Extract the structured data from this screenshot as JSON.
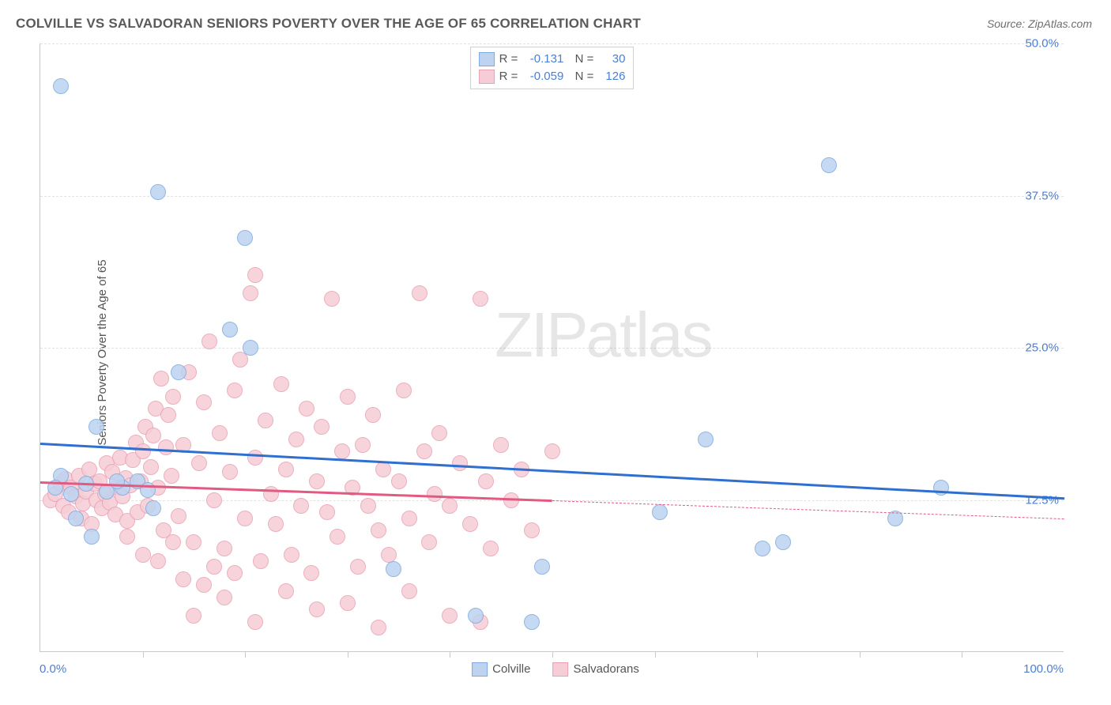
{
  "title": "COLVILLE VS SALVADORAN SENIORS POVERTY OVER THE AGE OF 65 CORRELATION CHART",
  "source": "Source: ZipAtlas.com",
  "ylabel": "Seniors Poverty Over the Age of 65",
  "watermark_a": "ZIP",
  "watermark_b": "atlas",
  "chart": {
    "type": "scatter",
    "xlim": [
      0,
      100
    ],
    "ylim": [
      0,
      50
    ],
    "xlim_labels": [
      "0.0%",
      "100.0%"
    ],
    "yticks": [
      12.5,
      25.0,
      37.5,
      50.0
    ],
    "ytick_labels": [
      "12.5%",
      "25.0%",
      "37.5%",
      "50.0%"
    ],
    "xtick_positions": [
      10,
      20,
      30,
      40,
      50,
      60,
      70,
      80,
      90
    ],
    "grid_color": "#e2e2e2",
    "axis_color": "#c9c9c9",
    "background_color": "#ffffff",
    "point_radius": 10,
    "series": [
      {
        "name": "Colville",
        "color_fill": "#bdd3f0",
        "color_stroke": "#7faae0",
        "R": "-0.131",
        "N": "30",
        "trend": {
          "x1": 0,
          "y1": 17.2,
          "x2": 100,
          "y2": 12.7,
          "color": "#2f6fd0",
          "width": 3,
          "solid_until_x": 100
        },
        "points": [
          [
            2.0,
            46.5
          ],
          [
            11.5,
            37.8
          ],
          [
            20.0,
            34.0
          ],
          [
            18.5,
            26.5
          ],
          [
            20.5,
            25.0
          ],
          [
            13.5,
            23.0
          ],
          [
            5.5,
            18.5
          ],
          [
            8.0,
            13.5
          ],
          [
            7.5,
            14.0
          ],
          [
            2.0,
            14.5
          ],
          [
            1.5,
            13.5
          ],
          [
            3.0,
            13.0
          ],
          [
            4.5,
            13.8
          ],
          [
            6.5,
            13.2
          ],
          [
            9.5,
            14.0
          ],
          [
            10.5,
            13.3
          ],
          [
            3.5,
            11.0
          ],
          [
            5.0,
            9.5
          ],
          [
            11.0,
            11.8
          ],
          [
            34.5,
            6.8
          ],
          [
            49.0,
            7.0
          ],
          [
            48.0,
            2.5
          ],
          [
            65.0,
            17.5
          ],
          [
            77.0,
            40.0
          ],
          [
            70.5,
            8.5
          ],
          [
            72.5,
            9.0
          ],
          [
            60.5,
            11.5
          ],
          [
            83.5,
            11.0
          ],
          [
            88.0,
            13.5
          ],
          [
            42.5,
            3.0
          ]
        ]
      },
      {
        "name": "Salvadorans",
        "color_fill": "#f6cdd6",
        "color_stroke": "#eaa2b3",
        "R": "-0.059",
        "N": "126",
        "trend": {
          "x1": 0,
          "y1": 14.0,
          "x2": 100,
          "y2": 11.0,
          "color": "#e05a82",
          "width": 3,
          "solid_until_x": 50
        },
        "points": [
          [
            1.0,
            12.5
          ],
          [
            1.5,
            13.0
          ],
          [
            2.0,
            13.8
          ],
          [
            2.2,
            12.0
          ],
          [
            2.5,
            14.2
          ],
          [
            2.8,
            11.5
          ],
          [
            3.0,
            13.5
          ],
          [
            3.5,
            12.8
          ],
          [
            3.8,
            14.5
          ],
          [
            4.0,
            11.0
          ],
          [
            4.2,
            12.2
          ],
          [
            4.5,
            13.2
          ],
          [
            4.8,
            15.0
          ],
          [
            5.0,
            10.5
          ],
          [
            5.3,
            13.8
          ],
          [
            5.5,
            12.5
          ],
          [
            5.8,
            14.0
          ],
          [
            6.0,
            11.8
          ],
          [
            6.3,
            13.0
          ],
          [
            6.5,
            15.5
          ],
          [
            6.8,
            12.3
          ],
          [
            7.0,
            14.8
          ],
          [
            7.3,
            11.3
          ],
          [
            7.5,
            13.5
          ],
          [
            7.8,
            16.0
          ],
          [
            8.0,
            12.8
          ],
          [
            8.3,
            14.3
          ],
          [
            8.5,
            10.8
          ],
          [
            8.8,
            13.7
          ],
          [
            9.0,
            15.8
          ],
          [
            9.3,
            17.2
          ],
          [
            9.5,
            11.5
          ],
          [
            9.8,
            14.0
          ],
          [
            10.0,
            16.5
          ],
          [
            10.3,
            18.5
          ],
          [
            10.5,
            12.0
          ],
          [
            10.8,
            15.2
          ],
          [
            11.0,
            17.8
          ],
          [
            11.3,
            20.0
          ],
          [
            11.5,
            13.5
          ],
          [
            11.8,
            22.5
          ],
          [
            12.0,
            10.0
          ],
          [
            12.3,
            16.8
          ],
          [
            12.5,
            19.5
          ],
          [
            12.8,
            14.5
          ],
          [
            13.0,
            21.0
          ],
          [
            13.5,
            11.2
          ],
          [
            14.0,
            17.0
          ],
          [
            14.5,
            23.0
          ],
          [
            15.0,
            9.0
          ],
          [
            15.5,
            15.5
          ],
          [
            16.0,
            20.5
          ],
          [
            16.5,
            25.5
          ],
          [
            17.0,
            12.5
          ],
          [
            17.5,
            18.0
          ],
          [
            18.0,
            8.5
          ],
          [
            18.5,
            14.8
          ],
          [
            19.0,
            21.5
          ],
          [
            19.5,
            24.0
          ],
          [
            20.0,
            11.0
          ],
          [
            20.5,
            29.5
          ],
          [
            21.0,
            16.0
          ],
          [
            21.5,
            7.5
          ],
          [
            22.0,
            19.0
          ],
          [
            22.5,
            13.0
          ],
          [
            23.0,
            10.5
          ],
          [
            23.5,
            22.0
          ],
          [
            24.0,
            15.0
          ],
          [
            24.5,
            8.0
          ],
          [
            25.0,
            17.5
          ],
          [
            25.5,
            12.0
          ],
          [
            26.0,
            20.0
          ],
          [
            26.5,
            6.5
          ],
          [
            27.0,
            14.0
          ],
          [
            27.5,
            18.5
          ],
          [
            28.0,
            11.5
          ],
          [
            28.5,
            29.0
          ],
          [
            29.0,
            9.5
          ],
          [
            29.5,
            16.5
          ],
          [
            30.0,
            21.0
          ],
          [
            30.5,
            13.5
          ],
          [
            31.0,
            7.0
          ],
          [
            31.5,
            17.0
          ],
          [
            32.0,
            12.0
          ],
          [
            32.5,
            19.5
          ],
          [
            33.0,
            10.0
          ],
          [
            33.5,
            15.0
          ],
          [
            34.0,
            8.0
          ],
          [
            35.0,
            14.0
          ],
          [
            35.5,
            21.5
          ],
          [
            36.0,
            11.0
          ],
          [
            37.0,
            29.5
          ],
          [
            37.5,
            16.5
          ],
          [
            38.0,
            9.0
          ],
          [
            38.5,
            13.0
          ],
          [
            39.0,
            18.0
          ],
          [
            40.0,
            12.0
          ],
          [
            41.0,
            15.5
          ],
          [
            42.0,
            10.5
          ],
          [
            43.0,
            29.0
          ],
          [
            43.5,
            14.0
          ],
          [
            44.0,
            8.5
          ],
          [
            45.0,
            17.0
          ],
          [
            46.0,
            12.5
          ],
          [
            47.0,
            15.0
          ],
          [
            48.0,
            10.0
          ],
          [
            50.0,
            16.5
          ],
          [
            15.0,
            3.0
          ],
          [
            18.0,
            4.5
          ],
          [
            21.0,
            2.5
          ],
          [
            24.0,
            5.0
          ],
          [
            27.0,
            3.5
          ],
          [
            30.0,
            4.0
          ],
          [
            33.0,
            2.0
          ],
          [
            21.0,
            31.0
          ],
          [
            13.0,
            9.0
          ],
          [
            14.0,
            6.0
          ],
          [
            16.0,
            5.5
          ],
          [
            17.0,
            7.0
          ],
          [
            19.0,
            6.5
          ],
          [
            40.0,
            3.0
          ],
          [
            36.0,
            5.0
          ],
          [
            10.0,
            8.0
          ],
          [
            8.5,
            9.5
          ],
          [
            11.5,
            7.5
          ],
          [
            43.0,
            2.5
          ]
        ]
      }
    ]
  },
  "legend_bottom": [
    {
      "label": "Colville",
      "fill": "#bdd3f0",
      "stroke": "#7faae0"
    },
    {
      "label": "Salvadorans",
      "fill": "#f6cdd6",
      "stroke": "#eaa2b3"
    }
  ]
}
